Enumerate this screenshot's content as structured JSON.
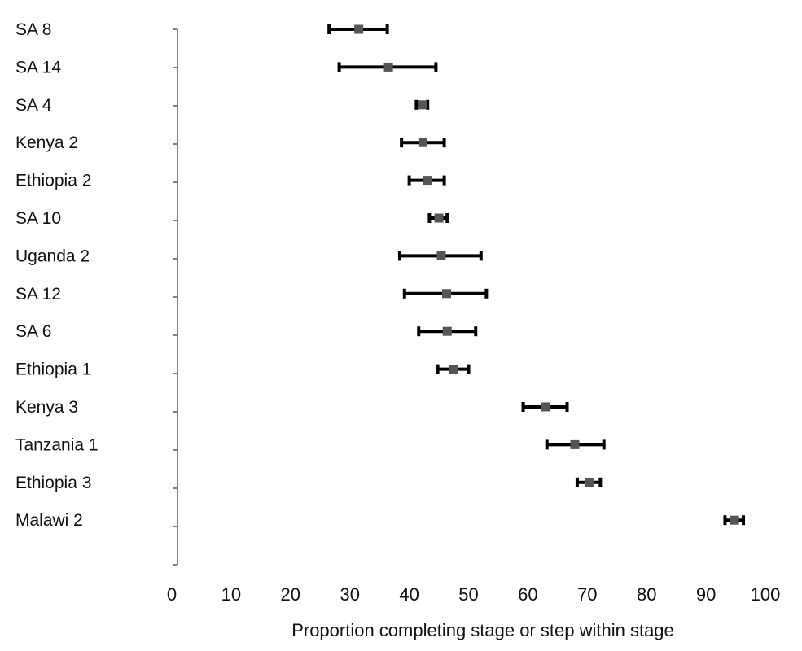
{
  "chart_data": {
    "type": "scatter",
    "title": "",
    "xlabel": "Proportion completing stage or step within stage",
    "ylabel": "",
    "xlim": [
      0,
      100
    ],
    "xticks": [
      0,
      10,
      20,
      30,
      40,
      50,
      60,
      70,
      80,
      90,
      100
    ],
    "grid": false,
    "legend": "none",
    "marker_color": "#555555",
    "errorbar_color": "#000000",
    "points": [
      {
        "label": "SA 8",
        "value": 31.5,
        "lower": 26.5,
        "upper": 36.3
      },
      {
        "label": "SA 14",
        "value": 36.5,
        "lower": 28.2,
        "upper": 44.5
      },
      {
        "label": "SA 4",
        "value": 42.2,
        "lower": 41.2,
        "upper": 43.1
      },
      {
        "label": "Kenya 2",
        "value": 42.3,
        "lower": 38.7,
        "upper": 45.9
      },
      {
        "label": "Ethiopia 2",
        "value": 43.0,
        "lower": 40.0,
        "upper": 45.9
      },
      {
        "label": "SA 10",
        "value": 45.0,
        "lower": 43.4,
        "upper": 46.4
      },
      {
        "label": "Uganda 2",
        "value": 45.4,
        "lower": 38.4,
        "upper": 52.1
      },
      {
        "label": "SA 12",
        "value": 46.3,
        "lower": 39.2,
        "upper": 53.0
      },
      {
        "label": "SA 6",
        "value": 46.4,
        "lower": 41.6,
        "upper": 51.2
      },
      {
        "label": "Ethiopia 1",
        "value": 47.5,
        "lower": 44.8,
        "upper": 50.0
      },
      {
        "label": "Kenya 3",
        "value": 63.0,
        "lower": 59.2,
        "upper": 66.6
      },
      {
        "label": "Tanzania 1",
        "value": 67.9,
        "lower": 63.2,
        "upper": 72.8
      },
      {
        "label": "Ethiopia 3",
        "value": 70.3,
        "lower": 68.3,
        "upper": 72.2
      },
      {
        "label": "Malawi 2",
        "value": 94.8,
        "lower": 93.2,
        "upper": 96.3
      }
    ]
  }
}
